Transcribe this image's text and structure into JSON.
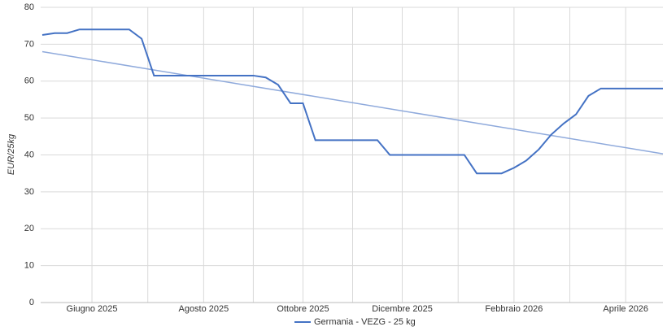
{
  "chart_data": {
    "type": "line",
    "y_label": "EUR/25kg",
    "categories": [
      null,
      null,
      null,
      null,
      "Giugno 2025",
      null,
      null,
      null,
      null,
      null,
      null,
      null,
      null,
      "Agosto 2025",
      null,
      null,
      null,
      null,
      null,
      null,
      null,
      "Ottobre 2025",
      null,
      null,
      null,
      null,
      null,
      null,
      null,
      "Dicembre 2025",
      null,
      null,
      null,
      null,
      null,
      null,
      null,
      null,
      "Febbraio 2026",
      null,
      null,
      null,
      null,
      null,
      null,
      null,
      null,
      "Aprile 2026",
      null,
      null,
      null
    ],
    "series": [
      {
        "name": "Germania - VEZG - 25 kg",
        "color": "#4472c4",
        "values": [
          72.5,
          73,
          73,
          74,
          74,
          74,
          74,
          74,
          71.5,
          61.5,
          61.5,
          61.5,
          61.5,
          61.5,
          61.5,
          61.5,
          61.5,
          61.5,
          61,
          59,
          54,
          54,
          44,
          44,
          44,
          44,
          44,
          44,
          40,
          40,
          40,
          40,
          40,
          40,
          40,
          35,
          35,
          35,
          36.5,
          38.5,
          41.5,
          45.5,
          48.5,
          51,
          56,
          58,
          58,
          58,
          58,
          58,
          58
        ]
      }
    ],
    "trendline": {
      "color": "#8faadc",
      "values": [
        68,
        40.3
      ]
    },
    "ylim": [
      0,
      80
    ],
    "yticks": [
      0,
      10,
      20,
      30,
      40,
      50,
      60,
      70,
      80
    ],
    "grid": true
  }
}
